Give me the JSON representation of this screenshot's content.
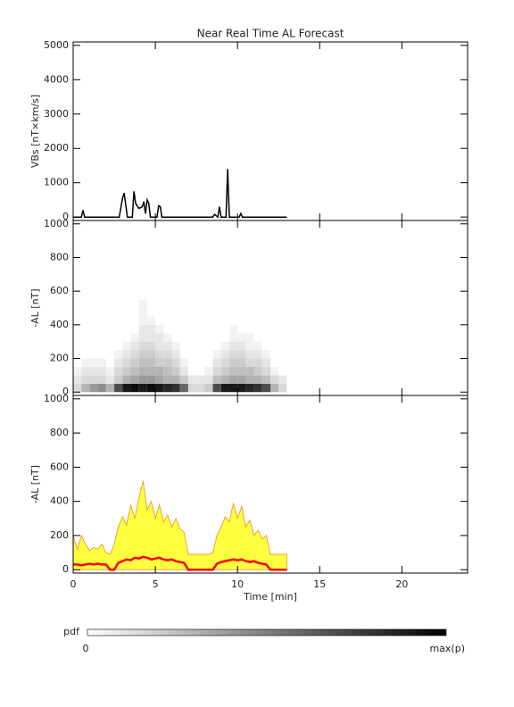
{
  "chart_data": [
    {
      "type": "line",
      "title": "Near Real Time AL Forecast",
      "ylabel": "VBs [nT×km/s]",
      "color": "#000000",
      "x": [
        0,
        0.5,
        0.6,
        0.7,
        2.8,
        3.0,
        3.1,
        3.3,
        3.6,
        3.7,
        3.8,
        4.0,
        4.2,
        4.3,
        4.4,
        4.5,
        4.6,
        4.7,
        4.8,
        5.1,
        5.2,
        5.3,
        5.4,
        8.5,
        8.6,
        8.8,
        8.9,
        9.0,
        9.3,
        9.4,
        9.5,
        10.1,
        10.2,
        10.3,
        13
      ],
      "values": [
        0,
        0,
        200,
        0,
        0,
        550,
        700,
        0,
        0,
        750,
        400,
        250,
        300,
        450,
        100,
        500,
        400,
        0,
        0,
        0,
        330,
        300,
        0,
        0,
        80,
        0,
        300,
        0,
        0,
        1400,
        0,
        0,
        100,
        0,
        0
      ],
      "xlim": [
        0,
        24
      ],
      "xticks": [
        0,
        5,
        10,
        15,
        20
      ],
      "ylim": [
        -100,
        5100
      ],
      "yticks": [
        0,
        1000,
        2000,
        3000,
        4000,
        5000
      ]
    },
    {
      "type": "heatmap",
      "ylabel": "-AL [nT]",
      "xbins": [
        0,
        0.5,
        1,
        1.5,
        2,
        2.5,
        3,
        3.5,
        4,
        4.5,
        5,
        5.5,
        6,
        6.5,
        7,
        7.5,
        8,
        8.5,
        9,
        9.5,
        10,
        10.5,
        11,
        11.5,
        12,
        12.5,
        13
      ],
      "ybins": [
        0,
        50,
        100,
        150,
        200,
        250,
        300,
        350,
        400,
        450,
        500,
        550
      ],
      "z": [
        [
          0.15,
          0.1,
          0.05,
          0,
          0,
          0,
          0,
          0,
          0,
          0,
          0
        ],
        [
          0.3,
          0.15,
          0.1,
          0.05,
          0,
          0,
          0,
          0,
          0,
          0,
          0
        ],
        [
          0.4,
          0.15,
          0.1,
          0.05,
          0,
          0,
          0,
          0,
          0,
          0,
          0
        ],
        [
          0.45,
          0.15,
          0.1,
          0.05,
          0,
          0,
          0,
          0,
          0,
          0,
          0
        ],
        [
          0.3,
          0.1,
          0.05,
          0,
          0,
          0,
          0,
          0,
          0,
          0,
          0
        ],
        [
          0.7,
          0.2,
          0.15,
          0.1,
          0.05,
          0,
          0,
          0,
          0,
          0,
          0
        ],
        [
          0.9,
          0.3,
          0.2,
          0.15,
          0.1,
          0.05,
          0,
          0,
          0,
          0,
          0
        ],
        [
          0.95,
          0.35,
          0.25,
          0.2,
          0.15,
          0.1,
          0.05,
          0,
          0,
          0,
          0
        ],
        [
          0.9,
          0.4,
          0.3,
          0.25,
          0.2,
          0.15,
          0.1,
          0.1,
          0.05,
          0.05,
          0.05
        ],
        [
          0.95,
          0.4,
          0.3,
          0.25,
          0.2,
          0.15,
          0.1,
          0.1,
          0.05,
          0,
          0
        ],
        [
          0.9,
          0.35,
          0.3,
          0.2,
          0.15,
          0.1,
          0.1,
          0.05,
          0,
          0,
          0
        ],
        [
          0.85,
          0.3,
          0.25,
          0.2,
          0.15,
          0.1,
          0.05,
          0,
          0,
          0,
          0
        ],
        [
          0.8,
          0.3,
          0.2,
          0.15,
          0.1,
          0.05,
          0,
          0,
          0,
          0,
          0
        ],
        [
          0.6,
          0.2,
          0.1,
          0.05,
          0,
          0,
          0,
          0,
          0,
          0,
          0
        ],
        [
          0.15,
          0.1,
          0,
          0,
          0,
          0,
          0,
          0,
          0,
          0,
          0
        ],
        [
          0.15,
          0.1,
          0,
          0,
          0,
          0,
          0,
          0,
          0,
          0,
          0
        ],
        [
          0.2,
          0.1,
          0.05,
          0,
          0,
          0,
          0,
          0,
          0,
          0,
          0
        ],
        [
          0.7,
          0.25,
          0.15,
          0.1,
          0.05,
          0,
          0,
          0,
          0,
          0,
          0
        ],
        [
          0.9,
          0.3,
          0.2,
          0.15,
          0.1,
          0.05,
          0,
          0,
          0,
          0,
          0
        ],
        [
          0.9,
          0.35,
          0.25,
          0.2,
          0.15,
          0.1,
          0.05,
          0.05,
          0,
          0,
          0
        ],
        [
          0.9,
          0.35,
          0.25,
          0.2,
          0.15,
          0.1,
          0.05,
          0,
          0,
          0,
          0
        ],
        [
          0.85,
          0.3,
          0.25,
          0.15,
          0.1,
          0.05,
          0.05,
          0,
          0,
          0,
          0
        ],
        [
          0.8,
          0.3,
          0.2,
          0.15,
          0.1,
          0.05,
          0,
          0,
          0,
          0,
          0
        ],
        [
          0.7,
          0.25,
          0.15,
          0.1,
          0.05,
          0,
          0,
          0,
          0,
          0,
          0
        ],
        [
          0.3,
          0.15,
          0.05,
          0,
          0,
          0,
          0,
          0,
          0,
          0,
          0
        ],
        [
          0.15,
          0.1,
          0,
          0,
          0,
          0,
          0,
          0,
          0,
          0,
          0
        ]
      ],
      "xlim": [
        0,
        24
      ],
      "xticks": [
        0,
        5,
        10,
        15,
        20
      ],
      "ylim": [
        -20,
        1020
      ],
      "yticks": [
        0,
        200,
        400,
        600,
        800,
        1000
      ]
    },
    {
      "type": "area",
      "ylabel": "-AL [nT]",
      "xlabel": "Time [min]",
      "x": [
        0,
        0.25,
        0.5,
        0.75,
        1,
        1.25,
        1.5,
        1.75,
        2,
        2.25,
        2.5,
        2.75,
        3,
        3.25,
        3.5,
        3.75,
        4,
        4.25,
        4.5,
        4.75,
        5,
        5.25,
        5.5,
        5.75,
        6,
        6.25,
        6.5,
        6.75,
        7,
        7.25,
        7.5,
        7.75,
        8,
        8.25,
        8.5,
        8.75,
        9,
        9.25,
        9.5,
        9.75,
        10,
        10.25,
        10.5,
        10.75,
        11,
        11.25,
        11.5,
        11.75,
        12,
        12.25,
        12.5,
        12.75,
        13
      ],
      "series": [
        {
          "color": "#ffff40",
          "stroke": "#f0a030",
          "values": [
            200,
            120,
            200,
            150,
            110,
            130,
            120,
            150,
            100,
            90,
            150,
            250,
            310,
            260,
            380,
            300,
            420,
            520,
            350,
            400,
            300,
            380,
            280,
            320,
            250,
            300,
            240,
            220,
            90,
            90,
            90,
            90,
            90,
            90,
            100,
            200,
            250,
            310,
            280,
            390,
            300,
            370,
            250,
            290,
            200,
            230,
            180,
            200,
            90,
            90,
            90,
            90,
            90
          ]
        },
        {
          "color": "#ff0000",
          "values": [
            30,
            30,
            25,
            30,
            35,
            30,
            35,
            30,
            30,
            0,
            0,
            40,
            50,
            60,
            55,
            70,
            65,
            75,
            70,
            60,
            65,
            70,
            60,
            55,
            60,
            50,
            45,
            40,
            0,
            0,
            0,
            0,
            0,
            0,
            0,
            35,
            45,
            50,
            55,
            60,
            55,
            60,
            50,
            45,
            50,
            40,
            35,
            30,
            0,
            0,
            0,
            0,
            0
          ]
        }
      ],
      "xlim": [
        0,
        24
      ],
      "xticks": [
        0,
        5,
        10,
        15,
        20
      ],
      "ylim": [
        -20,
        1020
      ],
      "yticks": [
        0,
        200,
        400,
        600,
        800,
        1000
      ]
    }
  ],
  "colorbar": {
    "label": "pdf",
    "min_label": "0",
    "max_label": "max(p)"
  }
}
